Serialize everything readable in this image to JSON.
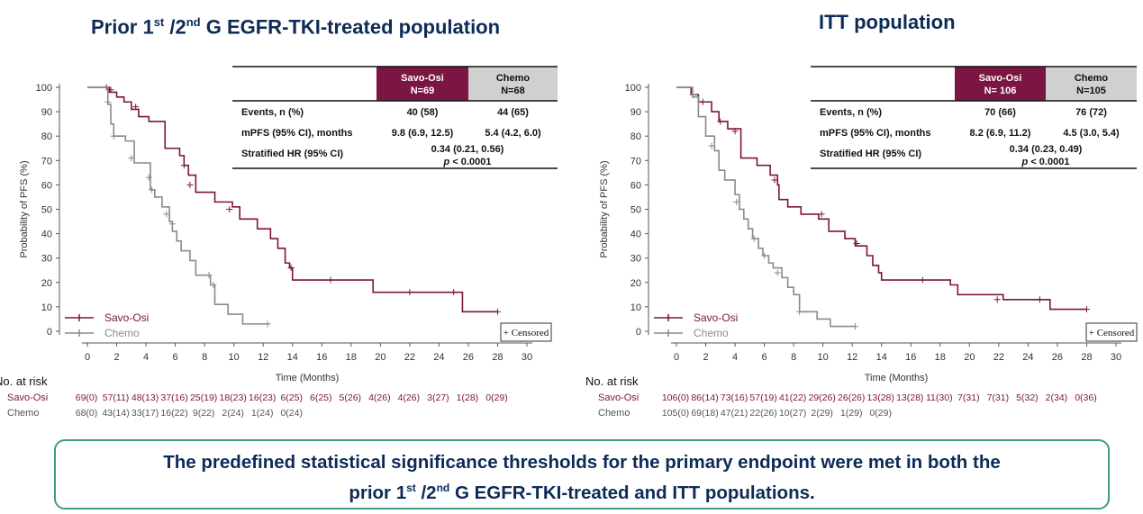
{
  "colors": {
    "savo": "#7b1541",
    "chemo": "#8a8a8a",
    "header_gray": "#d0d0d0",
    "title": "#0d2b57",
    "box_border": "#3f9c83"
  },
  "left": {
    "title": {
      "pre": "Prior 1",
      "sup1": "st",
      "mid": " /2",
      "sup2": "nd",
      "post": " G EGFR-TKI-treated population"
    },
    "table": {
      "col_savo": [
        "Savo-Osi",
        "N=69"
      ],
      "col_chemo": [
        "Chemo",
        "N=68"
      ],
      "events_label": "Events, n (%)",
      "events_savo": "40 (58)",
      "events_chemo": "44 (65)",
      "mpfs_label": "mPFS (95% CI), months",
      "mpfs_savo": "9.8 (6.9, 12.5)",
      "mpfs_chemo": "5.4 (4.2, 6.0)",
      "hr_label": "Stratified HR (95% CI)",
      "hr_value": "0.34 (0.21, 0.56)",
      "p_italic": "p",
      "p_rest": " < 0.0001"
    },
    "at_risk": {
      "header": "No. at risk",
      "savo_label": "Savo-Osi",
      "savo": [
        "69(0)",
        "57(11)",
        "48(13)",
        "37(16)",
        "25(19)",
        "18(23)",
        "16(23)",
        "6(25)",
        "6(25)",
        "5(26)",
        "4(26)",
        "4(26)",
        "3(27)",
        "1(28)",
        "0(29)"
      ],
      "chemo_label": "Chemo",
      "chemo": [
        "68(0)",
        "43(14)",
        "33(17)",
        "16(22)",
        "9(22)",
        "2(24)",
        "1(24)",
        "0(24)"
      ]
    }
  },
  "right": {
    "title": "ITT population",
    "table": {
      "col_savo": [
        "Savo-Osi",
        "N= 106"
      ],
      "col_chemo": [
        "Chemo",
        "N=105"
      ],
      "events_label": "Events, n (%)",
      "events_savo": "70 (66)",
      "events_chemo": "76 (72)",
      "mpfs_label": "mPFS (95% CI), months",
      "mpfs_savo": "8.2 (6.9, 11.2)",
      "mpfs_chemo": "4.5 (3.0, 5.4)",
      "hr_label": "Stratified HR (95% CI)",
      "hr_value": "0.34 (0.23, 0.49)",
      "p_italic": "p",
      "p_rest": " < 0.0001"
    },
    "at_risk": {
      "header": "No. at risk",
      "savo_label": "Savo-Osi",
      "savo": [
        "106(0)",
        "86(14)",
        "73(16)",
        "57(19)",
        "41(22)",
        "29(26)",
        "26(26)",
        "13(28)",
        "13(28)",
        "11(30)",
        "7(31)",
        "7(31)",
        "5(32)",
        "2(34)",
        "0(36)"
      ],
      "chemo_label": "Chemo",
      "chemo": [
        "105(0)",
        "69(18)",
        "47(21)",
        "22(26)",
        "10(27)",
        "2(29)",
        "1(29)",
        "0(29)"
      ]
    }
  },
  "conclusion": {
    "line1": "The predefined statistical significance thresholds for the primary endpoint were met in both the",
    "line2_pre": "prior 1",
    "sup1": "st",
    "line2_mid": " /2",
    "sup2": "nd",
    "line2_post": " G EGFR-TKI-treated and ITT populations."
  },
  "chart_data": [
    {
      "type": "line",
      "title": "Prior 1st /2nd G EGFR-TKI-treated population",
      "xlabel": "Time (Months)",
      "ylabel": "Probability of PFS (%)",
      "xticks": [
        "0",
        "2",
        "4",
        "6",
        "8",
        "10",
        "12",
        "14",
        "16",
        "18",
        "20",
        "22",
        "24",
        "26",
        "28",
        "30"
      ],
      "yticks": [
        "0",
        "10",
        "20",
        "30",
        "40",
        "50",
        "60",
        "70",
        "80",
        "90",
        "100"
      ],
      "xlim": [
        0,
        30
      ],
      "ylim": [
        0,
        100
      ],
      "legend": [
        "Savo-Osi",
        "Chemo"
      ],
      "censor_label": "+ Censored",
      "series": [
        {
          "name": "Savo-Osi",
          "x": [
            0,
            1.5,
            2.0,
            2.5,
            3.0,
            3.5,
            4.2,
            5.3,
            6.3,
            6.6,
            6.9,
            7.4,
            8.7,
            9.9,
            10.4,
            11.6,
            12.5,
            13.0,
            13.5,
            13.8,
            14.0,
            16.1,
            19.5,
            25.6,
            28.0
          ],
          "y": [
            100,
            98,
            96,
            94,
            91,
            88,
            86,
            75,
            72,
            68,
            64,
            57,
            53,
            51,
            46,
            42,
            38,
            34,
            28,
            26,
            21,
            21,
            16,
            8,
            8
          ],
          "censor_x": [
            1.3,
            1.6,
            3.3,
            6.6,
            7.0,
            9.7,
            13.9,
            16.6,
            22.0,
            25.0,
            28.0
          ],
          "censor_y": [
            100,
            99,
            92,
            68,
            60,
            50,
            26,
            21,
            16,
            16,
            8
          ]
        },
        {
          "name": "Chemo",
          "x": [
            0,
            1.4,
            1.6,
            1.8,
            2.6,
            3.2,
            4.3,
            4.6,
            5.1,
            5.6,
            5.8,
            6.1,
            6.4,
            7.0,
            7.4,
            8.4,
            8.7,
            9.6,
            10.6,
            12.4
          ],
          "y": [
            100,
            93,
            85,
            80,
            78,
            69,
            58,
            55,
            51,
            45,
            41,
            37,
            33,
            29,
            23,
            19,
            11,
            7,
            3,
            3
          ],
          "censor_x": [
            1.4,
            1.8,
            3.0,
            4.2,
            4.4,
            5.4,
            5.8,
            8.3,
            8.6,
            12.3
          ],
          "censor_y": [
            94,
            80,
            71,
            63,
            58,
            48,
            44,
            23,
            19,
            3
          ]
        }
      ]
    },
    {
      "type": "line",
      "title": "ITT population",
      "xlabel": "Time (Months)",
      "ylabel": "Probability of PFS (%)",
      "xticks": [
        "0",
        "2",
        "4",
        "6",
        "8",
        "10",
        "12",
        "14",
        "16",
        "18",
        "20",
        "22",
        "24",
        "26",
        "28",
        "30"
      ],
      "yticks": [
        "0",
        "10",
        "20",
        "30",
        "40",
        "50",
        "60",
        "70",
        "80",
        "90",
        "100"
      ],
      "xlim": [
        0,
        30
      ],
      "ylim": [
        0,
        100
      ],
      "legend": [
        "Savo-Osi",
        "Chemo"
      ],
      "censor_label": "+ Censored",
      "series": [
        {
          "name": "Savo-Osi",
          "x": [
            0,
            1.0,
            1.5,
            2.4,
            2.9,
            3.5,
            4.4,
            5.5,
            6.4,
            6.9,
            7.0,
            7.6,
            8.5,
            9.7,
            10.4,
            11.5,
            12.2,
            13.0,
            13.4,
            13.8,
            14.0,
            16.5,
            18.7,
            19.2,
            22.3,
            25.5,
            28.0
          ],
          "y": [
            100,
            97,
            94,
            90,
            86,
            83,
            71,
            68,
            64,
            60,
            54,
            51,
            48,
            46,
            41,
            38,
            35,
            31,
            27,
            24,
            21,
            21,
            19,
            15,
            13,
            9,
            9
          ],
          "censor_x": [
            1.8,
            3.0,
            4.0,
            6.7,
            9.9,
            12.3,
            16.8,
            21.9,
            24.8,
            28.0
          ],
          "censor_y": [
            94,
            86,
            82,
            62,
            48,
            36,
            21,
            13,
            13,
            9
          ]
        },
        {
          "name": "Chemo",
          "x": [
            0,
            1.1,
            1.5,
            2.0,
            2.6,
            2.9,
            3.3,
            4.0,
            4.3,
            4.6,
            4.9,
            5.2,
            5.6,
            5.9,
            6.3,
            6.6,
            7.2,
            7.6,
            8.0,
            8.4,
            9.6,
            10.5,
            12.2
          ],
          "y": [
            100,
            96,
            88,
            80,
            74,
            66,
            62,
            56,
            50,
            46,
            42,
            38,
            34,
            31,
            28,
            26,
            22,
            18,
            15,
            8,
            5,
            2,
            2
          ],
          "censor_x": [
            1.1,
            2.4,
            4.1,
            5.3,
            6.0,
            6.9,
            8.4,
            12.2
          ],
          "censor_y": [
            97,
            76,
            53,
            38,
            31,
            24,
            8,
            2
          ]
        }
      ]
    }
  ]
}
